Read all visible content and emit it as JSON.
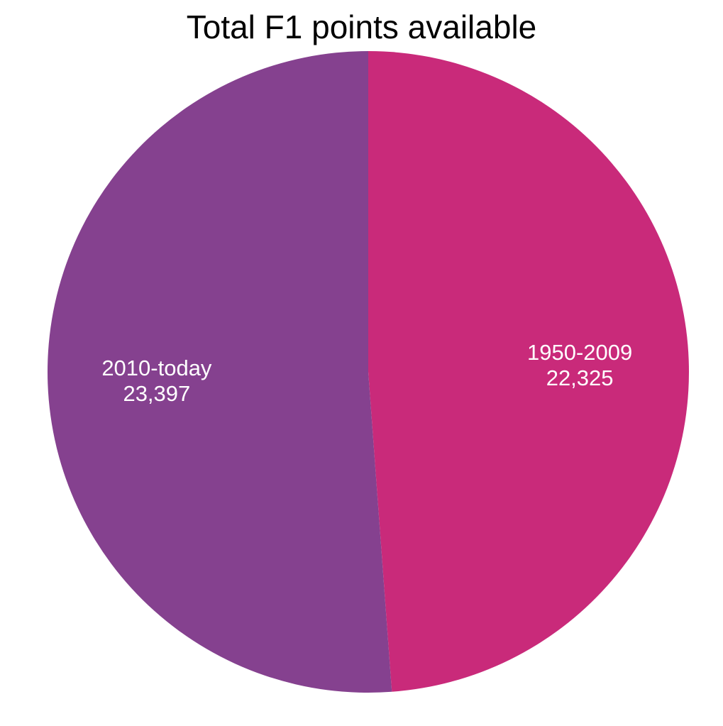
{
  "chart_data": {
    "type": "pie",
    "title": "Total F1 points available",
    "slices": [
      {
        "label": "1950-2009",
        "value": 22325,
        "value_label": "22,325",
        "color": "#C92A7A"
      },
      {
        "label": "2010-today",
        "value": 23397,
        "value_label": "23,397",
        "color": "#85418F"
      }
    ],
    "start_angle_deg": 0,
    "direction": "clockwise",
    "legend": "none"
  }
}
